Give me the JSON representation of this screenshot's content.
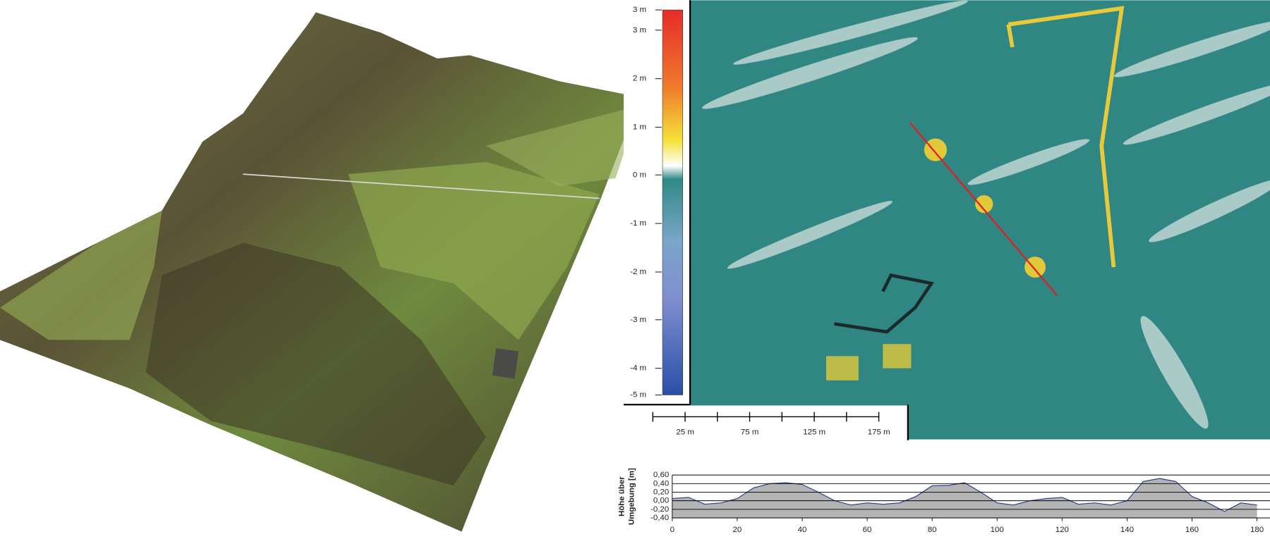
{
  "color_legend": {
    "labels": [
      "3 m",
      "3 m",
      "2 m",
      "1 m",
      "0 m",
      "-1 m",
      "-2 m",
      "-3 m",
      "-4 m",
      "-5 m"
    ]
  },
  "scale_bar": {
    "labels": [
      "25 m",
      "75 m",
      "125 m",
      "175 m"
    ]
  },
  "chart_data": {
    "type": "area",
    "ylabel_lines": [
      "Höhe über",
      "Umgebung [m]"
    ],
    "x": [
      0,
      5,
      10,
      15,
      20,
      25,
      30,
      35,
      40,
      45,
      50,
      55,
      60,
      65,
      70,
      75,
      80,
      85,
      90,
      95,
      100,
      105,
      110,
      115,
      120,
      125,
      130,
      135,
      140,
      145,
      150,
      155,
      160,
      165,
      170,
      175,
      180
    ],
    "values": [
      0.05,
      0.08,
      -0.08,
      -0.05,
      0.05,
      0.3,
      0.4,
      0.42,
      0.38,
      0.2,
      0.0,
      -0.1,
      -0.05,
      -0.08,
      -0.05,
      0.1,
      0.35,
      0.36,
      0.42,
      0.2,
      -0.05,
      -0.1,
      0.0,
      0.05,
      0.08,
      -0.08,
      -0.05,
      -0.1,
      0.0,
      0.45,
      0.52,
      0.45,
      0.1,
      -0.05,
      -0.25,
      -0.05,
      -0.1
    ],
    "color": "#b4b4b4",
    "line_color": "#2a3a8a",
    "xlim": [
      0,
      184
    ],
    "ylim": [
      -0.4,
      0.6
    ],
    "xticks": [
      0,
      20,
      40,
      60,
      80,
      100,
      120,
      140,
      160,
      180
    ],
    "yticks": [
      {
        "value": 0.6,
        "label": "0,60"
      },
      {
        "value": 0.4,
        "label": "0,40"
      },
      {
        "value": 0.2,
        "label": "0,20"
      },
      {
        "value": 0.0,
        "label": "0,00"
      },
      {
        "value": -0.2,
        "label": "-0,20"
      },
      {
        "value": -0.4,
        "label": "-0,40"
      }
    ],
    "grid": true
  }
}
